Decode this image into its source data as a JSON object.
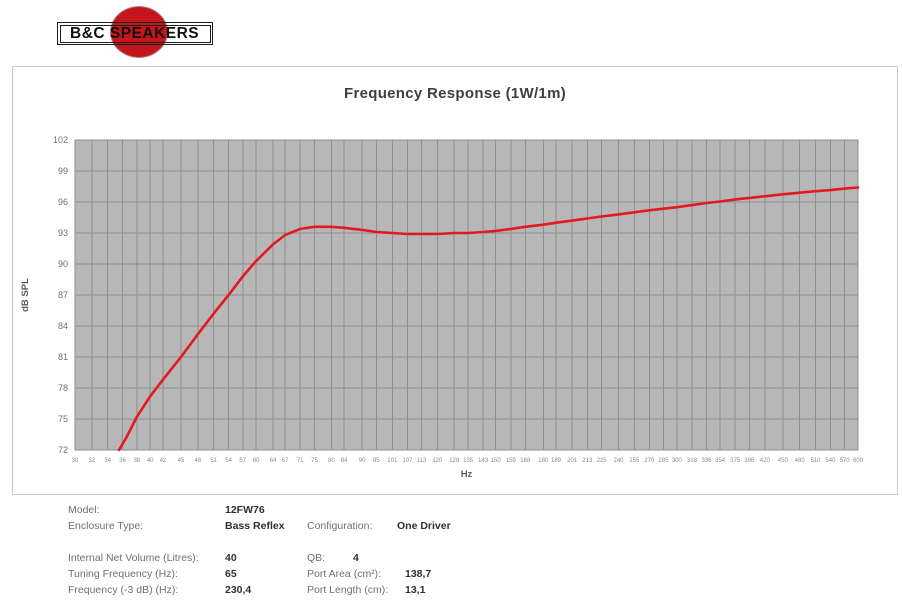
{
  "logo": {
    "text": "B&C SPEAKERS",
    "circle_color": "#c5161b"
  },
  "chart_data": {
    "type": "line",
    "title": "Frequency Response (1W/1m)",
    "xlabel": "Hz",
    "ylabel": "dB SPL",
    "x_scale": "log",
    "xlim": [
      30,
      600
    ],
    "ylim": [
      72,
      102
    ],
    "grid": true,
    "plot_bg": "#b7b7b7",
    "grid_color": "#8e8e8e",
    "line_color": "#e4191f",
    "x_ticks": [
      30,
      32,
      34,
      36,
      38,
      40,
      42,
      45,
      48,
      51,
      54,
      57,
      60,
      64,
      67,
      71,
      75,
      80,
      84,
      90,
      95,
      101,
      107,
      113,
      120,
      128,
      135,
      143,
      150,
      159,
      168,
      180,
      189,
      201,
      213,
      225,
      240,
      255,
      270,
      285,
      300,
      318,
      336,
      354,
      375,
      396,
      420,
      450,
      480,
      510,
      540,
      570,
      600
    ],
    "y_ticks": [
      72,
      75,
      78,
      81,
      84,
      87,
      90,
      93,
      96,
      99,
      102
    ],
    "series": [
      {
        "name": "SPL (1W/1m)",
        "points": [
          [
            35.5,
            72
          ],
          [
            36.5,
            73.2
          ],
          [
            38,
            75.2
          ],
          [
            40,
            77.2
          ],
          [
            42,
            78.8
          ],
          [
            45,
            81.0
          ],
          [
            48,
            83.2
          ],
          [
            51,
            85.2
          ],
          [
            54,
            87.0
          ],
          [
            57,
            88.8
          ],
          [
            60,
            90.3
          ],
          [
            64,
            91.9
          ],
          [
            67,
            92.8
          ],
          [
            71,
            93.4
          ],
          [
            75,
            93.6
          ],
          [
            80,
            93.6
          ],
          [
            84,
            93.5
          ],
          [
            90,
            93.3
          ],
          [
            95,
            93.1
          ],
          [
            101,
            93.0
          ],
          [
            107,
            92.9
          ],
          [
            113,
            92.9
          ],
          [
            120,
            92.9
          ],
          [
            128,
            93.0
          ],
          [
            135,
            93.0
          ],
          [
            143,
            93.1
          ],
          [
            150,
            93.2
          ],
          [
            159,
            93.4
          ],
          [
            168,
            93.6
          ],
          [
            180,
            93.8
          ],
          [
            189,
            94.0
          ],
          [
            201,
            94.2
          ],
          [
            213,
            94.4
          ],
          [
            225,
            94.6
          ],
          [
            240,
            94.8
          ],
          [
            255,
            95.0
          ],
          [
            270,
            95.2
          ],
          [
            285,
            95.35
          ],
          [
            300,
            95.5
          ],
          [
            318,
            95.7
          ],
          [
            336,
            95.9
          ],
          [
            354,
            96.05
          ],
          [
            375,
            96.25
          ],
          [
            396,
            96.4
          ],
          [
            420,
            96.55
          ],
          [
            450,
            96.75
          ],
          [
            480,
            96.9
          ],
          [
            510,
            97.05
          ],
          [
            540,
            97.15
          ],
          [
            570,
            97.3
          ],
          [
            600,
            97.4
          ]
        ]
      }
    ]
  },
  "specs": {
    "rows": [
      {
        "l1": "Model:",
        "v1": "12FW76",
        "l2": "",
        "v2": ""
      },
      {
        "l1": "Enclosure Type:",
        "v1": "Bass Reflex",
        "l2": "Configuration:",
        "v2": "One Driver"
      },
      {
        "l1": "Internal Net Volume (Litres):",
        "v1": "40",
        "l2": "QB:",
        "v2": "4"
      },
      {
        "l1": "Tuning Frequency (Hz):",
        "v1": "65",
        "l2": "Port Area (cm²):",
        "v2": "138,7"
      },
      {
        "l1": "Frequency (-3 dB) (Hz):",
        "v1": "230,4",
        "l2": "Port Length (cm):",
        "v2": "13,1"
      }
    ]
  }
}
